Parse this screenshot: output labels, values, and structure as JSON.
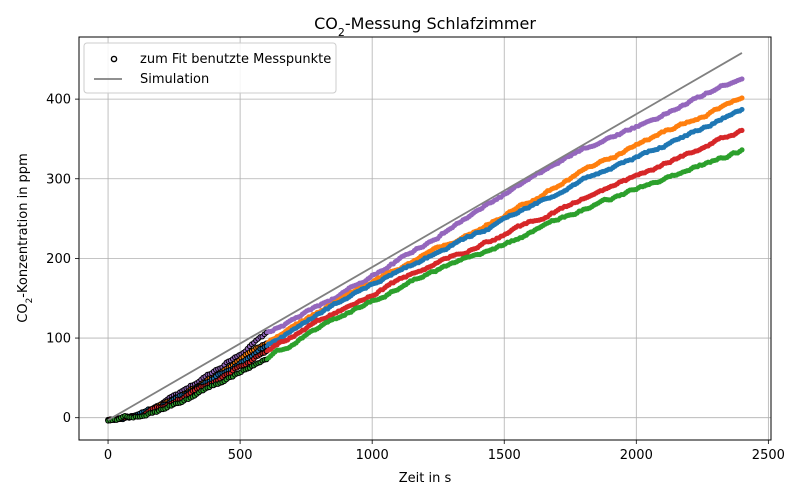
{
  "chart_data": {
    "type": "scatter",
    "title": "CO₂-Messung Schlafzimmer",
    "title_base": "CO",
    "title_sub": "2",
    "title_rest": "-Messung Schlafzimmer",
    "xlabel": "Zeit in s",
    "ylabel_base": "CO",
    "ylabel_sub": "2",
    "ylabel_rest": "-Konzentration in ppm",
    "xlim": [
      -110,
      2510
    ],
    "ylim": [
      -28,
      478
    ],
    "xticks": [
      0,
      500,
      1000,
      1500,
      2000,
      2500
    ],
    "yticks": [
      0,
      100,
      200,
      300,
      400
    ],
    "grid": true,
    "legend_position": "top-left",
    "legend": [
      {
        "label": "zum Fit benutzte Messpunkte",
        "marker": "open-circle"
      },
      {
        "label": "Simulation",
        "marker": "line"
      }
    ],
    "fit_range": [
      0,
      600
    ],
    "simulation": {
      "color": "#808080",
      "x": [
        0,
        2400
      ],
      "y": [
        -3,
        458
      ]
    },
    "series": [
      {
        "color": "#9467bd",
        "anchors": [
          [
            0,
            -3
          ],
          [
            120,
            3
          ],
          [
            300,
            35
          ],
          [
            600,
            105
          ],
          [
            900,
            158
          ],
          [
            1200,
            218
          ],
          [
            1500,
            280
          ],
          [
            1800,
            338
          ],
          [
            2100,
            380
          ],
          [
            2400,
            428
          ]
        ]
      },
      {
        "color": "#ff7f0e",
        "anchors": [
          [
            0,
            -3
          ],
          [
            120,
            4
          ],
          [
            300,
            32
          ],
          [
            600,
            95
          ],
          [
            900,
            152
          ],
          [
            1200,
            205
          ],
          [
            1500,
            255
          ],
          [
            1800,
            310
          ],
          [
            2100,
            358
          ],
          [
            2400,
            400
          ]
        ]
      },
      {
        "color": "#1f77b4",
        "anchors": [
          [
            0,
            -3
          ],
          [
            120,
            3
          ],
          [
            300,
            30
          ],
          [
            600,
            90
          ],
          [
            900,
            150
          ],
          [
            1200,
            200
          ],
          [
            1500,
            248
          ],
          [
            1800,
            300
          ],
          [
            2100,
            340
          ],
          [
            2400,
            388
          ]
        ]
      },
      {
        "color": "#d62728",
        "anchors": [
          [
            0,
            -3
          ],
          [
            120,
            3
          ],
          [
            300,
            27
          ],
          [
            600,
            85
          ],
          [
            900,
            140
          ],
          [
            1200,
            188
          ],
          [
            1500,
            230
          ],
          [
            1800,
            275
          ],
          [
            2100,
            318
          ],
          [
            2400,
            362
          ]
        ]
      },
      {
        "color": "#2ca02c",
        "anchors": [
          [
            0,
            -3
          ],
          [
            120,
            2
          ],
          [
            300,
            22
          ],
          [
            600,
            75
          ],
          [
            900,
            130
          ],
          [
            1200,
            178
          ],
          [
            1500,
            218
          ],
          [
            1800,
            262
          ],
          [
            2100,
            300
          ],
          [
            2400,
            335
          ]
        ]
      }
    ]
  }
}
